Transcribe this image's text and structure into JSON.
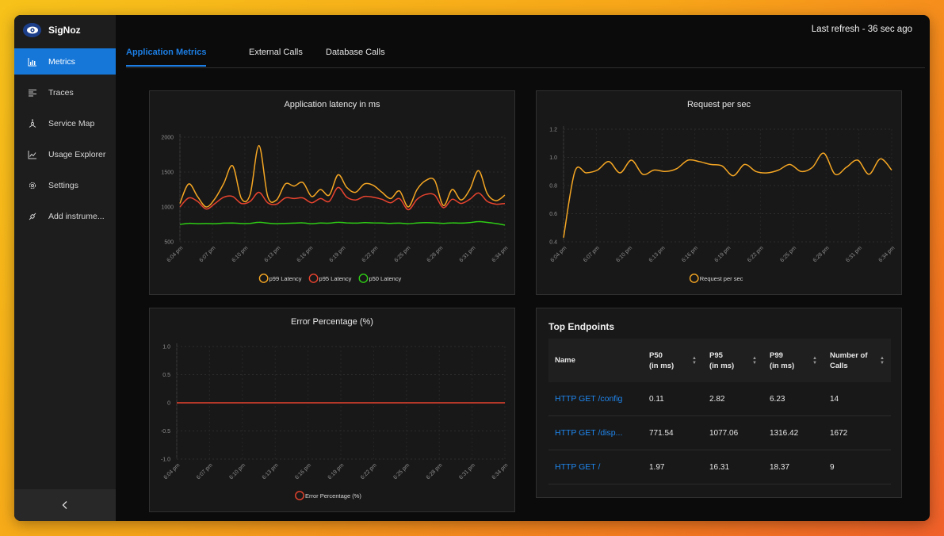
{
  "brand": {
    "name": "SigNoz"
  },
  "sidebar": {
    "items": [
      {
        "label": "Metrics",
        "icon": "bar-chart-icon",
        "active": true
      },
      {
        "label": "Traces",
        "icon": "align-left-icon"
      },
      {
        "label": "Service Map",
        "icon": "deployment-unit-icon"
      },
      {
        "label": "Usage Explorer",
        "icon": "line-chart-icon"
      },
      {
        "label": "Settings",
        "icon": "gear-icon"
      },
      {
        "label": "Add instrume...",
        "icon": "api-icon"
      }
    ],
    "collapse_label": "‹"
  },
  "header": {
    "refresh": "Last refresh - 36 sec ago"
  },
  "tabs": [
    {
      "label": "Application Metrics",
      "active": true
    },
    {
      "label": "External Calls"
    },
    {
      "label": "Database Calls"
    }
  ],
  "colors": {
    "accent": "#1677d9",
    "p99": "#f5a623",
    "p95": "#e8432e",
    "p50": "#2ecc15",
    "rps": "#f5a623",
    "error": "#e8432e"
  },
  "chart_data": [
    {
      "type": "line",
      "title": "Application latency in ms",
      "x_ticks": [
        "6:04 pm",
        "6:07 pm",
        "6:10 pm",
        "6:13 pm",
        "6:16 pm",
        "6:19 pm",
        "6:22 pm",
        "6:25 pm",
        "6:28 pm",
        "6:31 pm",
        "6:34 pm"
      ],
      "y_ticks": [
        "2000",
        "1500",
        "1000",
        "500"
      ],
      "ylim": [
        500,
        2000
      ],
      "legend_position": "bottom",
      "series": [
        {
          "name": "p99 Latency",
          "color": "#f5a623",
          "values": [
            1050,
            1330,
            1150,
            1000,
            1120,
            1340,
            1590,
            1120,
            1180,
            1880,
            1150,
            1100,
            1330,
            1300,
            1350,
            1150,
            1250,
            1170,
            1460,
            1280,
            1210,
            1330,
            1310,
            1210,
            1120,
            1230,
            1000,
            1250,
            1380,
            1380,
            1020,
            1250,
            1100,
            1250,
            1520,
            1190,
            1090,
            1170
          ]
        },
        {
          "name": "p95 Latency",
          "color": "#e8432e",
          "values": [
            1000,
            1130,
            1080,
            970,
            1050,
            1140,
            1150,
            1050,
            1080,
            1210,
            1060,
            1040,
            1130,
            1120,
            1130,
            1060,
            1120,
            1080,
            1280,
            1140,
            1100,
            1150,
            1140,
            1110,
            1060,
            1120,
            960,
            1110,
            1180,
            1170,
            990,
            1110,
            1050,
            1110,
            1200,
            1080,
            1040,
            1050
          ]
        },
        {
          "name": "p50 Latency",
          "color": "#2ecc15",
          "values": [
            750,
            765,
            760,
            762,
            760,
            768,
            770,
            762,
            765,
            780,
            768,
            760,
            765,
            768,
            772,
            760,
            770,
            768,
            780,
            772,
            768,
            775,
            772,
            770,
            765,
            768,
            760,
            770,
            775,
            772,
            765,
            772,
            768,
            775,
            790,
            778,
            762,
            740
          ]
        }
      ]
    },
    {
      "type": "line",
      "title": "Request per sec",
      "x_ticks": [
        "6:04 pm",
        "6:07 pm",
        "6:10 pm",
        "6:13 pm",
        "6:16 pm",
        "6:19 pm",
        "6:22 pm",
        "6:25 pm",
        "6:28 pm",
        "6:31 pm",
        "6:34 pm"
      ],
      "y_ticks": [
        "1.2",
        "1.0",
        "0.8",
        "0.6",
        "0.4"
      ],
      "ylim": [
        0.4,
        1.2
      ],
      "legend_position": "bottom",
      "series": [
        {
          "name": "Request per sec",
          "color": "#f5a623",
          "values": [
            0.43,
            0.9,
            0.89,
            0.91,
            0.97,
            0.89,
            0.98,
            0.88,
            0.91,
            0.9,
            0.92,
            0.98,
            0.97,
            0.95,
            0.94,
            0.87,
            0.95,
            0.9,
            0.89,
            0.91,
            0.95,
            0.9,
            0.93,
            1.03,
            0.88,
            0.93,
            0.98,
            0.88,
            0.99,
            0.91
          ]
        }
      ]
    },
    {
      "type": "line",
      "title": "Error Percentage (%)",
      "x_ticks": [
        "6:04 pm",
        "6:07 pm",
        "6:10 pm",
        "6:13 pm",
        "6:16 pm",
        "6:19 pm",
        "6:22 pm",
        "6:25 pm",
        "6:28 pm",
        "6:31 pm",
        "6:34 pm"
      ],
      "y_ticks": [
        "1.0",
        "0.5",
        "0",
        "-0.5",
        "-1.0"
      ],
      "ylim": [
        -1.0,
        1.0
      ],
      "legend_position": "bottom",
      "series": [
        {
          "name": "Error Percentage (%)",
          "color": "#e8432e",
          "values": [
            0,
            0,
            0,
            0,
            0,
            0,
            0,
            0,
            0,
            0,
            0,
            0,
            0,
            0,
            0,
            0,
            0,
            0,
            0,
            0,
            0,
            0,
            0,
            0,
            0,
            0,
            0,
            0,
            0,
            0
          ]
        }
      ]
    }
  ],
  "top_endpoints": {
    "title": "Top Endpoints",
    "columns": [
      {
        "line1": "Name",
        "line2": "",
        "sortable": false
      },
      {
        "line1": "P50",
        "line2": "(in ms)",
        "sortable": true
      },
      {
        "line1": "P95",
        "line2": "(in ms)",
        "sortable": true
      },
      {
        "line1": "P99",
        "line2": "(in ms)",
        "sortable": true
      },
      {
        "line1": "Number of",
        "line2": "Calls",
        "sortable": true
      }
    ],
    "rows": [
      {
        "name": "HTTP GET /config",
        "p50": "0.11",
        "p95": "2.82",
        "p99": "6.23",
        "calls": "14"
      },
      {
        "name": "HTTP GET /disp...",
        "p50": "771.54",
        "p95": "1077.06",
        "p99": "1316.42",
        "calls": "1672"
      },
      {
        "name": "HTTP GET /",
        "p50": "1.97",
        "p95": "16.31",
        "p99": "18.37",
        "calls": "9"
      }
    ]
  }
}
